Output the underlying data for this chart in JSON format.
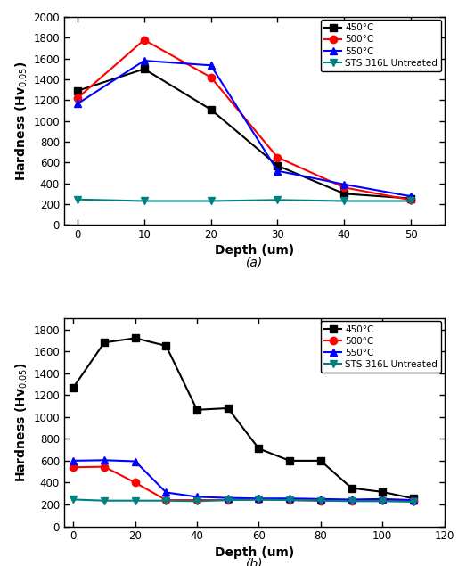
{
  "panel_a": {
    "series": [
      {
        "label": "450°C",
        "color": "black",
        "marker": "s",
        "x": [
          0,
          10,
          20,
          30,
          40,
          50
        ],
        "y": [
          1290,
          1500,
          1110,
          570,
          300,
          255
        ]
      },
      {
        "label": "500°C",
        "color": "red",
        "marker": "o",
        "x": [
          0,
          10,
          20,
          30,
          40,
          50
        ],
        "y": [
          1220,
          1780,
          1420,
          650,
          360,
          240
        ]
      },
      {
        "label": "550°C",
        "color": "blue",
        "marker": "^",
        "x": [
          0,
          10,
          20,
          30,
          40,
          50
        ],
        "y": [
          1165,
          1580,
          1535,
          520,
          390,
          275
        ]
      },
      {
        "label": "STS 316L Untreated",
        "color": "#008080",
        "marker": "v",
        "x": [
          0,
          10,
          20,
          30,
          40,
          50
        ],
        "y": [
          245,
          230,
          230,
          240,
          230,
          230
        ]
      }
    ],
    "xlabel": "Depth (um)",
    "ylabel": "Hardness (Hv$_{0.05}$)",
    "ylim": [
      0,
      2000
    ],
    "xlim": [
      -2,
      55
    ],
    "yticks": [
      0,
      200,
      400,
      600,
      800,
      1000,
      1200,
      1400,
      1600,
      1800,
      2000
    ],
    "xticks": [
      0,
      10,
      20,
      30,
      40,
      50
    ],
    "panel_label": "(a)"
  },
  "panel_b": {
    "series": [
      {
        "label": "450°C",
        "color": "black",
        "marker": "s",
        "x": [
          0,
          10,
          20,
          30,
          40,
          50,
          60,
          70,
          80,
          90,
          100,
          110
        ],
        "y": [
          1270,
          1680,
          1720,
          1650,
          1065,
          1080,
          710,
          600,
          600,
          350,
          315,
          255
        ]
      },
      {
        "label": "500°C",
        "color": "red",
        "marker": "o",
        "x": [
          0,
          10,
          20,
          30,
          40,
          50,
          60,
          70,
          80,
          90,
          100,
          110
        ],
        "y": [
          540,
          545,
          400,
          240,
          240,
          240,
          245,
          240,
          235,
          235,
          240,
          230
        ]
      },
      {
        "label": "550°C",
        "color": "blue",
        "marker": "^",
        "x": [
          0,
          10,
          20,
          30,
          40,
          50,
          60,
          70,
          80,
          90,
          100,
          110
        ],
        "y": [
          600,
          605,
          595,
          310,
          270,
          260,
          255,
          255,
          250,
          245,
          250,
          240
        ]
      },
      {
        "label": "STS 316L Untreated",
        "color": "#008080",
        "marker": "v",
        "x": [
          0,
          10,
          20,
          30,
          40,
          50,
          60,
          70,
          80,
          90,
          100,
          110
        ],
        "y": [
          245,
          235,
          235,
          235,
          230,
          240,
          245,
          240,
          235,
          230,
          230,
          225
        ]
      }
    ],
    "xlabel": "Depth (um)",
    "ylabel": "Hardness (Hv$_{0.05}$)",
    "ylim": [
      0,
      1900
    ],
    "xlim": [
      -3,
      120
    ],
    "yticks": [
      0,
      200,
      400,
      600,
      800,
      1000,
      1200,
      1400,
      1600,
      1800
    ],
    "xticks": [
      0,
      20,
      40,
      60,
      80,
      100,
      120
    ],
    "panel_label": "(b)"
  },
  "bg_color": "white",
  "linewidth": 1.5,
  "markersize": 6
}
